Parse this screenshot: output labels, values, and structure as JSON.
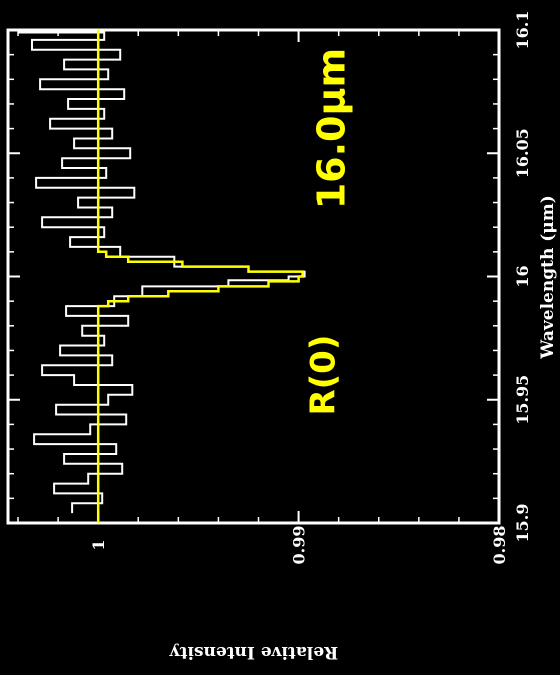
{
  "chart_data": {
    "type": "line",
    "orientation": "rotated-90-clockwise",
    "xlabel": "Wavelength (μm)",
    "ylabel": "Relative Intensity",
    "xlim": [
      15.9,
      16.1
    ],
    "ylim": [
      0.98,
      1.0045
    ],
    "x_ticks": [
      {
        "value": 15.9,
        "label": "15.9"
      },
      {
        "value": 15.95,
        "label": "15.95"
      },
      {
        "value": 16.0,
        "label": "16"
      },
      {
        "value": 16.05,
        "label": "16.05"
      },
      {
        "value": 16.1,
        "label": "16.1"
      }
    ],
    "y_ticks": [
      {
        "value": 0.98,
        "label": "0.98"
      },
      {
        "value": 0.99,
        "label": "0.99"
      },
      {
        "value": 1.0,
        "label": "1"
      }
    ],
    "annotations": [
      {
        "text": "R(0)",
        "x": 15.96,
        "y": 0.9882,
        "color": "#ffff00"
      },
      {
        "text": "16.0μm",
        "x": 16.06,
        "y": 0.9877,
        "color": "#ffff00"
      }
    ],
    "series": [
      {
        "color": "#ffffff",
        "style": "steps",
        "x": [
          15.904,
          15.908,
          15.912,
          15.916,
          15.92,
          15.924,
          15.928,
          15.932,
          15.936,
          15.94,
          15.944,
          15.948,
          15.952,
          15.956,
          15.96,
          15.964,
          15.968,
          15.972,
          15.976,
          15.98,
          15.984,
          15.988,
          15.992,
          15.996,
          15.9985,
          16.0,
          16.002,
          16.004,
          16.008,
          16.012,
          16.016,
          16.02,
          16.024,
          16.028,
          16.032,
          16.036,
          16.04,
          16.044,
          16.048,
          16.052,
          16.056,
          16.06,
          16.064,
          16.068,
          16.072,
          16.076,
          16.08,
          16.084,
          16.088,
          16.092,
          16.096,
          16.099
        ],
        "y": [
          1.0013,
          0.9998,
          1.0022,
          1.0005,
          0.9988,
          1.0017,
          0.9991,
          1.0032,
          1.0004,
          0.9986,
          1.0021,
          0.9995,
          0.9983,
          1.0012,
          1.0028,
          0.9993,
          1.0019,
          0.9997,
          1.0008,
          0.9985,
          1.0016,
          0.9992,
          0.9978,
          0.9935,
          0.9905,
          0.9897,
          0.9925,
          0.9962,
          0.9989,
          1.0014,
          0.9997,
          1.0028,
          0.9993,
          1.001,
          0.9982,
          1.0031,
          0.9996,
          1.0018,
          0.9984,
          1.0012,
          0.9993,
          1.0024,
          0.9997,
          1.0015,
          0.9987,
          1.0029,
          0.9995,
          1.0017,
          0.9989,
          1.0033,
          0.9997,
          1.004
        ]
      },
      {
        "color": "#ffff00",
        "style": "steps",
        "x": [
          15.9,
          15.985,
          15.988,
          15.99,
          15.992,
          15.994,
          15.996,
          15.998,
          16.0,
          16.002,
          16.004,
          16.006,
          16.008,
          16.01,
          16.012,
          16.1
        ],
        "y": [
          1.0,
          1.0,
          0.9995,
          0.9985,
          0.9965,
          0.994,
          0.9915,
          0.99,
          0.9898,
          0.9925,
          0.9958,
          0.9985,
          0.9996,
          1.0,
          1.0,
          1.0
        ]
      }
    ]
  }
}
